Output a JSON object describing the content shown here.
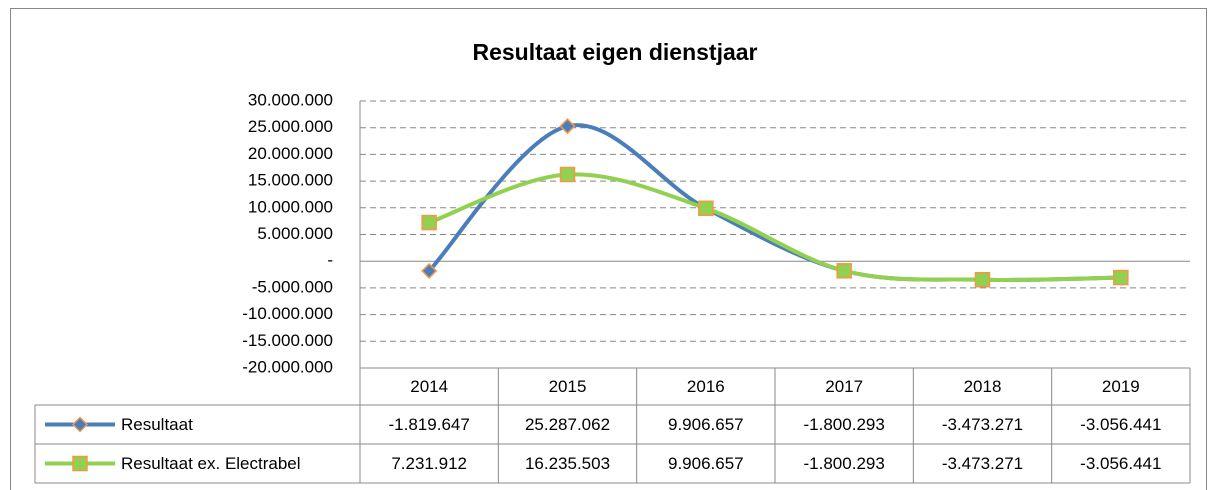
{
  "chart_data": {
    "type": "line",
    "title": "Resultaat eigen dienstjaar",
    "categories": [
      "2014",
      "2015",
      "2016",
      "2017",
      "2018",
      "2019"
    ],
    "series": [
      {
        "name": "Resultaat",
        "color": "#4a7ebb",
        "marker_color": "#f79646",
        "values": [
          -1819647,
          25287062,
          9906657,
          -1800293,
          -3473271,
          -3056441
        ],
        "value_labels": [
          "-1.819.647",
          "25.287.062",
          "9.906.657",
          "-1.800.293",
          "-3.473.271",
          "-3.056.441"
        ]
      },
      {
        "name": "Resultaat ex. Electrabel",
        "color": "#92d050",
        "marker_color": "#f79646",
        "values": [
          7231912,
          16235503,
          9906657,
          -1800293,
          -3473271,
          -3056441
        ],
        "value_labels": [
          "7.231.912",
          "16.235.503",
          "9.906.657",
          "-1.800.293",
          "-3.473.271",
          "-3.056.441"
        ]
      }
    ],
    "ylim": [
      -20000000,
      30000000
    ],
    "yticks": [
      {
        "value": -20000000,
        "label": "-20.000.000"
      },
      {
        "value": -15000000,
        "label": "-15.000.000"
      },
      {
        "value": -10000000,
        "label": "-10.000.000"
      },
      {
        "value": -5000000,
        "label": "-5.000.000"
      },
      {
        "value": 0,
        "label": "-"
      },
      {
        "value": 5000000,
        "label": "5.000.000"
      },
      {
        "value": 10000000,
        "label": "10.000.000"
      },
      {
        "value": 15000000,
        "label": "15.000.000"
      },
      {
        "value": 20000000,
        "label": "20.000.000"
      },
      {
        "value": 25000000,
        "label": "25.000.000"
      },
      {
        "value": 30000000,
        "label": "30.000.000"
      }
    ],
    "grid": true,
    "smooth": true
  }
}
